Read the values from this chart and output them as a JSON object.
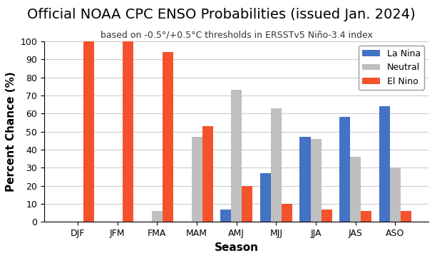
{
  "title": "Official NOAA CPC ENSO Probabilities (issued Jan. 2024)",
  "subtitle": "based on -0.5°/+0.5°C thresholds in ERSSTv5 Niño-3.4 index",
  "xlabel": "Season",
  "ylabel": "Percent Chance (%)",
  "seasons": [
    "DJF",
    "JFM",
    "FMA",
    "MAM",
    "AMJ",
    "MJJ",
    "JJA",
    "JAS",
    "ASO"
  ],
  "la_nina": [
    0,
    0,
    0,
    0,
    7,
    27,
    47,
    58,
    64
  ],
  "neutral": [
    0,
    0,
    6,
    47,
    73,
    63,
    46,
    36,
    30
  ],
  "el_nino": [
    100,
    100,
    94,
    53,
    20,
    10,
    7,
    6,
    6
  ],
  "la_nina_color": "#4472c4",
  "neutral_color": "#bfbfbf",
  "el_nino_color": "#f4522d",
  "legend_labels": [
    "La Nina",
    "Neutral",
    "El Nino"
  ],
  "ylim": [
    0,
    100
  ],
  "yticks": [
    0,
    10,
    20,
    30,
    40,
    50,
    60,
    70,
    80,
    90,
    100
  ],
  "title_fontsize": 14,
  "subtitle_fontsize": 9,
  "axis_label_fontsize": 11,
  "tick_fontsize": 9,
  "legend_fontsize": 9,
  "background_color": "#ffffff",
  "bar_width": 0.27,
  "grid_color": "#cccccc"
}
